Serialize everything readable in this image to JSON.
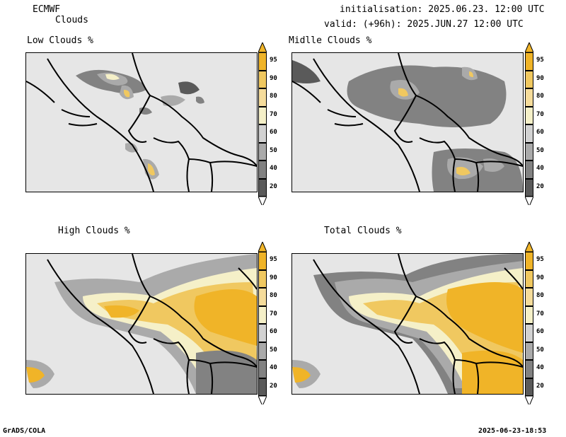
{
  "header": {
    "model": "ECMWF",
    "product": "Clouds",
    "init": "initialisation: 2025.06.23. 12:00 UTC",
    "valid": "valid: (+96h): 2025.JUN.27 12:00 UTC"
  },
  "panels": [
    {
      "title": "Low Clouds %"
    },
    {
      "title": "Midlle Clouds %"
    },
    {
      "title": "High Clouds %"
    },
    {
      "title": "Total Clouds %"
    }
  ],
  "legend": {
    "levels": [
      "95",
      "90",
      "80",
      "70",
      "60",
      "50",
      "40",
      "20"
    ],
    "colors": {
      "c95": "#f0b428",
      "c90": "#f0c860",
      "c80": "#f5dc9b",
      "c70": "#f5f0c8",
      "c60": "#d2d2d2",
      "c50": "#aaaaaa",
      "c40": "#828282",
      "c20": "#5a5a5a"
    }
  },
  "footer": {
    "left": "GrADS/COLA",
    "right": "2025-06-23-18:53"
  }
}
